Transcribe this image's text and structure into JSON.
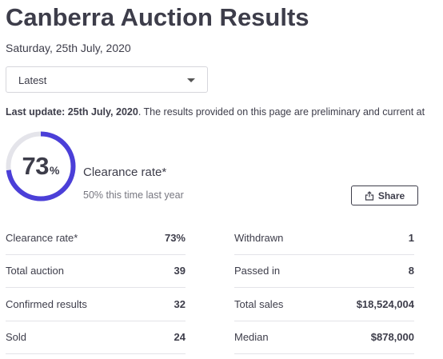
{
  "header": {
    "title": "Canberra Auction Results",
    "date": "Saturday, 25th July, 2020"
  },
  "filter": {
    "selected": "Latest"
  },
  "update": {
    "label": "Last update:",
    "date": "25th July, 2020",
    "text": ". The results provided on this page are preliminary and current at"
  },
  "clearance": {
    "value": "73",
    "unit": "%",
    "fraction": 0.73,
    "label": "Clearance rate*",
    "previous": "50% this time last year",
    "ring_color": "#4b3fd8",
    "track_color": "#e4e4ea"
  },
  "share": {
    "label": "Share"
  },
  "stats_left": [
    {
      "label": "Clearance rate*",
      "value": "73%"
    },
    {
      "label": "Total auction",
      "value": "39"
    },
    {
      "label": "Confirmed results",
      "value": "32"
    },
    {
      "label": "Sold",
      "value": "24"
    }
  ],
  "stats_right": [
    {
      "label": "Withdrawn",
      "value": "1"
    },
    {
      "label": "Passed in",
      "value": "8"
    },
    {
      "label": "Total sales",
      "value": "$18,524,004"
    },
    {
      "label": "Median",
      "value": "$878,000"
    }
  ]
}
